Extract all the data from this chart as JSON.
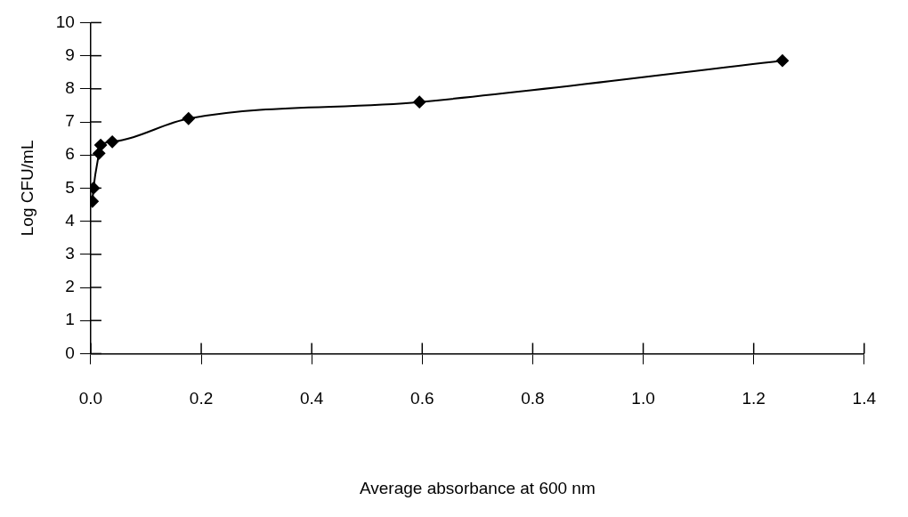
{
  "chart_data": {
    "type": "line",
    "xlabel": "Average absorbance at 600 nm",
    "ylabel": "Log CFU/mL",
    "x": [
      0.003,
      0.005,
      0.015,
      0.018,
      0.039,
      0.177,
      0.595,
      1.252
    ],
    "series": [
      {
        "color": "#000000",
        "values": [
          4.6,
          5.0,
          6.05,
          6.3,
          6.4,
          7.1,
          7.6,
          8.85
        ]
      }
    ],
    "xlim": [
      0,
      1.4
    ],
    "xticks": [
      {
        "value": 0,
        "label": "0.0"
      },
      0.2,
      0.4,
      0.6,
      0.8,
      {
        "value": 1,
        "label": "1.0"
      },
      1.2,
      1.4
    ],
    "ylim": [
      0,
      10
    ],
    "yticks": [
      0,
      1,
      2,
      3,
      4,
      5,
      6,
      7,
      8,
      9,
      10
    ],
    "grid": false,
    "legend": false,
    "marker": "diamond",
    "line_style": "solid"
  }
}
